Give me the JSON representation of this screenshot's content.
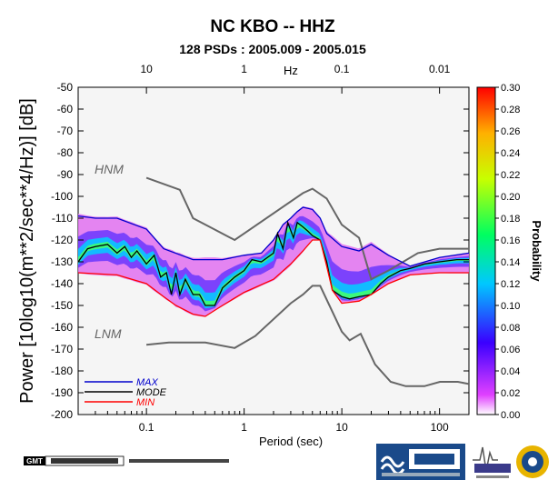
{
  "chart_data": {
    "type": "heatmap",
    "title": "NC KBO -- HHZ",
    "subtitle": "128 PSDs : 2005.009 - 2005.015",
    "xlabel": "Period (sec)",
    "ylabel": "Power [10log10(m**2/sec**4/Hz)] [dB]",
    "x_scale": "log",
    "xlim": [
      0.02,
      200
    ],
    "ylim": [
      -200,
      -50
    ],
    "x_ticks": [
      "0.1",
      "1",
      "10",
      "100"
    ],
    "top_axis_label": "Hz",
    "top_ticks": [
      "10",
      "1",
      "0.1",
      "0.01"
    ],
    "y_ticks": [
      "-50",
      "-60",
      "-70",
      "-80",
      "-90",
      "-100",
      "-110",
      "-120",
      "-130",
      "-140",
      "-150",
      "-160",
      "-170",
      "-180",
      "-190",
      "-200"
    ],
    "colorbar": {
      "label": "Probability",
      "range": [
        0,
        0.3
      ],
      "ticks": [
        "0.00",
        "0.02",
        "0.04",
        "0.06",
        "0.08",
        "0.10",
        "0.12",
        "0.14",
        "0.16",
        "0.18",
        "0.20",
        "0.22",
        "0.24",
        "0.26",
        "0.28",
        "0.30"
      ]
    },
    "legend": {
      "placement": "bottom-left",
      "entries": [
        {
          "name": "MAX",
          "color": "#0000cc"
        },
        {
          "name": "MODE",
          "color": "#000000"
        },
        {
          "name": "MIN",
          "color": "#ff0000"
        }
      ]
    },
    "annotations": [
      "HNM",
      "LNM"
    ],
    "series": [
      {
        "name": "HNM",
        "color": "#666666",
        "x": [
          0.1,
          0.22,
          0.3,
          0.8,
          4.0,
          5.0,
          7.0,
          10.0,
          15.0,
          20.0,
          30.0,
          60.0,
          100.0,
          200.0
        ],
        "y": [
          -91.5,
          -97,
          -110,
          -120,
          -98.5,
          -96.5,
          -101,
          -113,
          -119,
          -138,
          -134,
          -126,
          -124,
          -124
        ]
      },
      {
        "name": "LNM",
        "color": "#666666",
        "x": [
          0.1,
          0.17,
          0.4,
          0.8,
          1.3,
          3.0,
          4.0,
          5.0,
          6.0,
          10.0,
          12.0,
          15.6,
          21.9,
          31.6,
          45.0,
          70.0,
          101.0,
          154.0,
          200.0
        ],
        "y": [
          -168,
          -167,
          -167,
          -169.5,
          -164,
          -149,
          -145,
          -141,
          -141,
          -162,
          -166,
          -163,
          -177,
          -185,
          -187,
          -187,
          -185,
          -185,
          -186
        ]
      },
      {
        "name": "MAX",
        "color": "#0000cc",
        "x": [
          0.02,
          0.03,
          0.05,
          0.1,
          0.15,
          0.3,
          0.6,
          1.0,
          1.5,
          2.0,
          2.5,
          3.0,
          3.5,
          4.0,
          5.0,
          6.0,
          7.0,
          10.0,
          15.0,
          20.0,
          30.0,
          50.0,
          100.0,
          200.0
        ],
        "y": [
          -109,
          -110,
          -110,
          -115,
          -124,
          -129,
          -129,
          -127,
          -126,
          -120,
          -113,
          -110,
          -107,
          -105,
          -106,
          -110,
          -117,
          -123,
          -125,
          -122,
          -127,
          -132,
          -128,
          -126
        ]
      },
      {
        "name": "MODE",
        "color": "#000000",
        "x": [
          0.02,
          0.025,
          0.03,
          0.04,
          0.05,
          0.06,
          0.07,
          0.08,
          0.1,
          0.12,
          0.14,
          0.16,
          0.18,
          0.2,
          0.22,
          0.25,
          0.3,
          0.35,
          0.4,
          0.5,
          0.6,
          0.8,
          1.0,
          1.2,
          1.5,
          2.0,
          2.2,
          2.5,
          2.8,
          3.2,
          3.5,
          4.0,
          4.5,
          5.0,
          6.0,
          7.0,
          8.0,
          10.0,
          12.0,
          15.0,
          20.0,
          25.0,
          30.0,
          40.0,
          50.0,
          70.0,
          100.0,
          150.0,
          200.0
        ],
        "y": [
          -130,
          -124,
          -123,
          -122,
          -126,
          -123,
          -128,
          -125,
          -131,
          -127,
          -137,
          -135,
          -145,
          -135,
          -145,
          -138,
          -145,
          -145,
          -150,
          -150,
          -142,
          -137,
          -134,
          -129,
          -130,
          -126,
          -117,
          -124,
          -112,
          -119,
          -112,
          -114,
          -116,
          -118,
          -120,
          -130,
          -143,
          -146,
          -147,
          -146,
          -145,
          -140,
          -137,
          -134,
          -133,
          -131,
          -130,
          -129,
          -129
        ]
      },
      {
        "name": "MIN",
        "color": "#ff0000",
        "x": [
          0.02,
          0.05,
          0.1,
          0.15,
          0.2,
          0.3,
          0.4,
          0.6,
          1.0,
          2.0,
          3.0,
          4.0,
          5.0,
          6.0,
          7.0,
          8.0,
          10.0,
          15.0,
          20.0,
          30.0,
          50.0,
          100.0,
          200.0
        ],
        "y": [
          -135,
          -136,
          -140,
          -146,
          -150,
          -154,
          -155,
          -150,
          -144,
          -138,
          -131,
          -125,
          -120,
          -120,
          -132,
          -143,
          -149,
          -148,
          -145,
          -140,
          -136,
          -135,
          -135
        ]
      }
    ]
  }
}
